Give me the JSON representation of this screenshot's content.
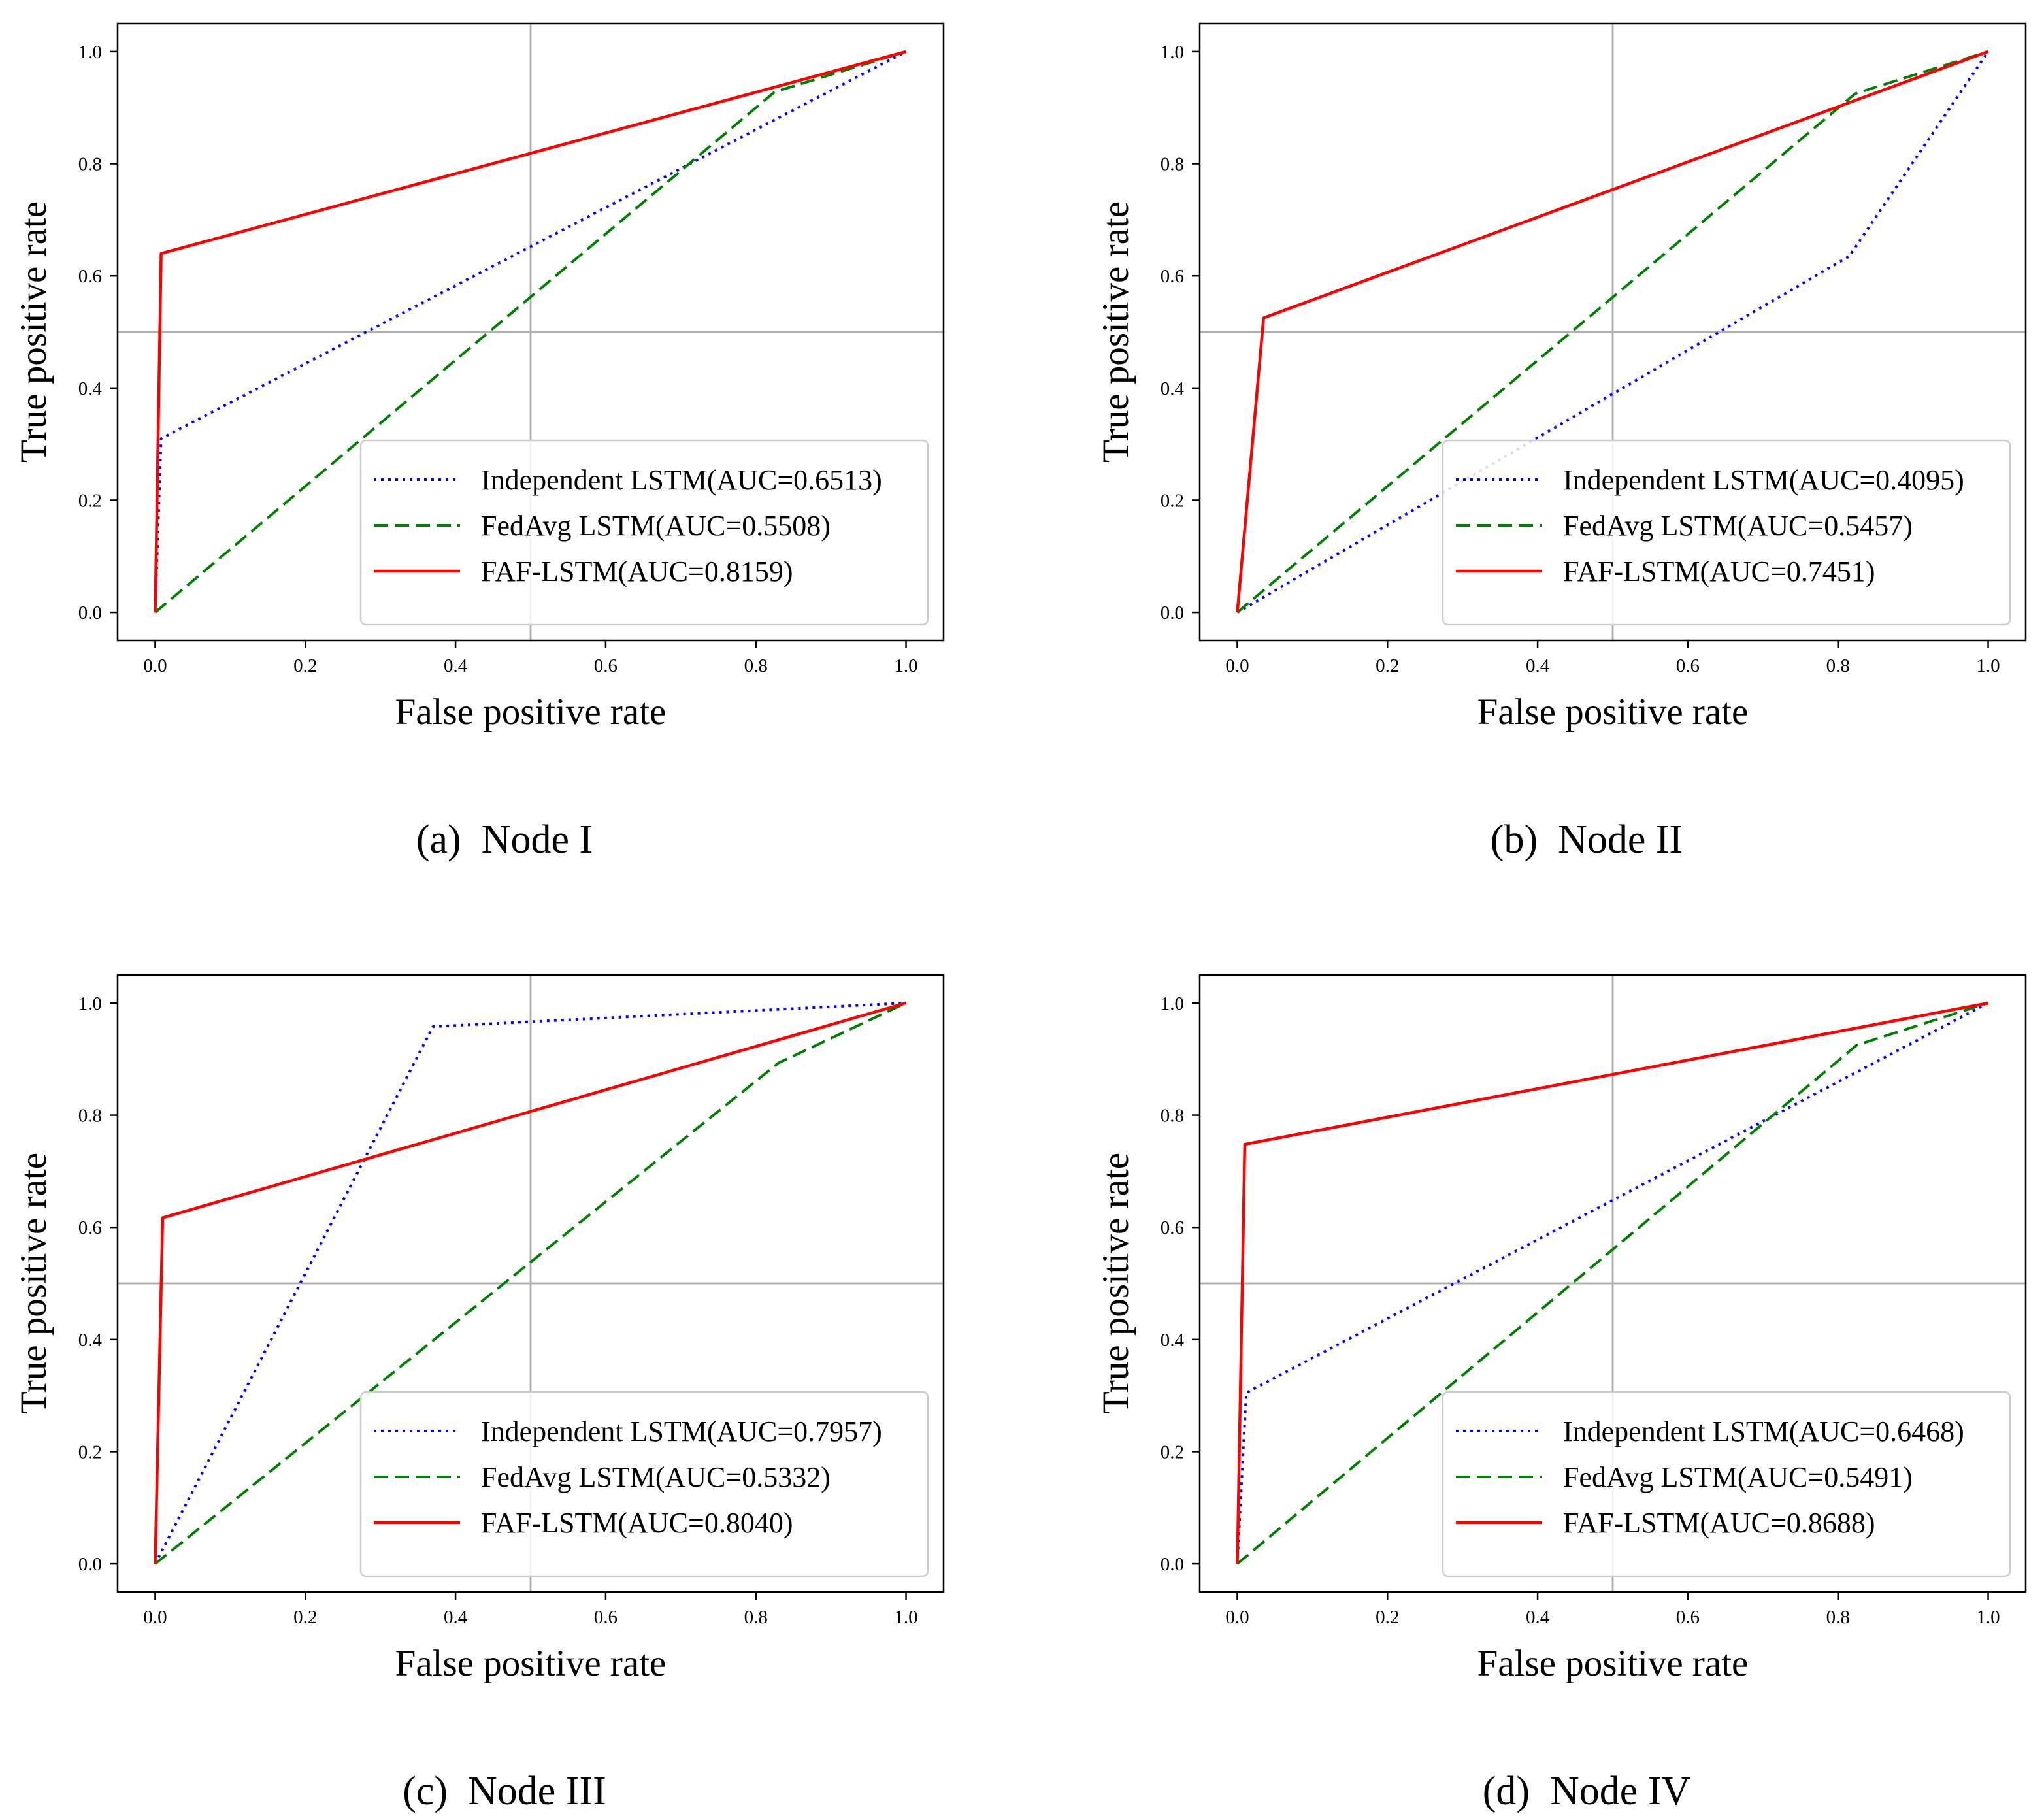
{
  "figure": {
    "background": "#ffffff"
  },
  "chart_data": [
    {
      "type": "line",
      "panel": "a",
      "caption": "(a)  Node I",
      "xlabel": "False positive rate",
      "ylabel": "True positive rate",
      "xlim": [
        -0.05,
        1.05
      ],
      "ylim": [
        -0.05,
        1.05
      ],
      "xticks": [
        "0.0",
        "0.2",
        "0.4",
        "0.6",
        "0.8",
        "1.0"
      ],
      "yticks": [
        "0.0",
        "0.2",
        "0.4",
        "0.6",
        "0.8",
        "1.0"
      ],
      "reference_lines": {
        "x": 0.5,
        "y": 0.5
      },
      "legend_position": "lower-right",
      "series": [
        {
          "name": "Independent LSTM(AUC=0.6513)",
          "style": "dotted",
          "color": "#0000ff",
          "x": [
            0.0,
            0.008,
            1.0
          ],
          "y": [
            0.0,
            0.31,
            1.0
          ]
        },
        {
          "name": "FedAvg LSTM(AUC=0.5508)",
          "style": "dashed",
          "color": "#008000",
          "x": [
            0.0,
            0.825,
            1.0
          ],
          "y": [
            0.0,
            0.928,
            1.0
          ]
        },
        {
          "name": "FAF-LSTM(AUC=0.8159)",
          "style": "solid",
          "color": "#ff0000",
          "x": [
            0.0,
            0.008,
            1.0
          ],
          "y": [
            0.0,
            0.64,
            1.0
          ]
        }
      ]
    },
    {
      "type": "line",
      "panel": "b",
      "caption": "(b)  Node II",
      "xlabel": "False positive rate",
      "ylabel": "True positive rate",
      "xlim": [
        -0.05,
        1.05
      ],
      "ylim": [
        -0.05,
        1.05
      ],
      "xticks": [
        "0.0",
        "0.2",
        "0.4",
        "0.6",
        "0.8",
        "1.0"
      ],
      "yticks": [
        "0.0",
        "0.2",
        "0.4",
        "0.6",
        "0.8",
        "1.0"
      ],
      "reference_lines": {
        "x": 0.5,
        "y": 0.5
      },
      "legend_position": "lower-right",
      "series": [
        {
          "name": "Independent LSTM(AUC=0.4095)",
          "style": "dotted",
          "color": "#0000ff",
          "x": [
            0.0,
            0.815,
            1.0
          ],
          "y": [
            0.0,
            0.635,
            1.0
          ]
        },
        {
          "name": "FedAvg LSTM(AUC=0.5457)",
          "style": "dashed",
          "color": "#008000",
          "x": [
            0.0,
            0.823,
            1.0
          ],
          "y": [
            0.0,
            0.925,
            1.0
          ]
        },
        {
          "name": "FAF-LSTM(AUC=0.7451)",
          "style": "solid",
          "color": "#ff0000",
          "x": [
            0.0,
            0.035,
            1.0
          ],
          "y": [
            0.0,
            0.525,
            1.0
          ]
        }
      ]
    },
    {
      "type": "line",
      "panel": "c",
      "caption": "(c)  Node III",
      "xlabel": "False positive rate",
      "ylabel": "True positive rate",
      "xlim": [
        -0.05,
        1.05
      ],
      "ylim": [
        -0.05,
        1.05
      ],
      "xticks": [
        "0.0",
        "0.2",
        "0.4",
        "0.6",
        "0.8",
        "1.0"
      ],
      "yticks": [
        "0.0",
        "0.2",
        "0.4",
        "0.6",
        "0.8",
        "1.0"
      ],
      "reference_lines": {
        "x": 0.5,
        "y": 0.5
      },
      "legend_position": "lower-right",
      "series": [
        {
          "name": "Independent LSTM(AUC=0.7957)",
          "style": "dotted",
          "color": "#0000ff",
          "x": [
            0.0,
            0.37,
            1.0
          ],
          "y": [
            0.0,
            0.958,
            1.0
          ]
        },
        {
          "name": "FedAvg LSTM(AUC=0.5332)",
          "style": "dashed",
          "color": "#008000",
          "x": [
            0.0,
            0.83,
            1.0
          ],
          "y": [
            0.0,
            0.893,
            1.0
          ]
        },
        {
          "name": "FAF-LSTM(AUC=0.8040)",
          "style": "solid",
          "color": "#ff0000",
          "x": [
            0.0,
            0.01,
            1.0
          ],
          "y": [
            0.0,
            0.617,
            1.0
          ]
        }
      ]
    },
    {
      "type": "line",
      "panel": "d",
      "caption": "(d)  Node IV",
      "xlabel": "False positive rate",
      "ylabel": "True positive rate",
      "xlim": [
        -0.05,
        1.05
      ],
      "ylim": [
        -0.05,
        1.05
      ],
      "xticks": [
        "0.0",
        "0.2",
        "0.4",
        "0.6",
        "0.8",
        "1.0"
      ],
      "yticks": [
        "0.0",
        "0.2",
        "0.4",
        "0.6",
        "0.8",
        "1.0"
      ],
      "reference_lines": {
        "x": 0.5,
        "y": 0.5
      },
      "legend_position": "lower-right",
      "series": [
        {
          "name": "Independent LSTM(AUC=0.6468)",
          "style": "dotted",
          "color": "#0000ff",
          "x": [
            0.0,
            0.012,
            1.0
          ],
          "y": [
            0.0,
            0.305,
            1.0
          ]
        },
        {
          "name": "FedAvg LSTM(AUC=0.5491)",
          "style": "dashed",
          "color": "#008000",
          "x": [
            0.0,
            0.825,
            1.0
          ],
          "y": [
            0.0,
            0.925,
            1.0
          ]
        },
        {
          "name": "FAF-LSTM(AUC=0.8688)",
          "style": "solid",
          "color": "#ff0000",
          "x": [
            0.0,
            0.01,
            1.0
          ],
          "y": [
            0.0,
            0.748,
            1.0
          ]
        }
      ]
    }
  ]
}
